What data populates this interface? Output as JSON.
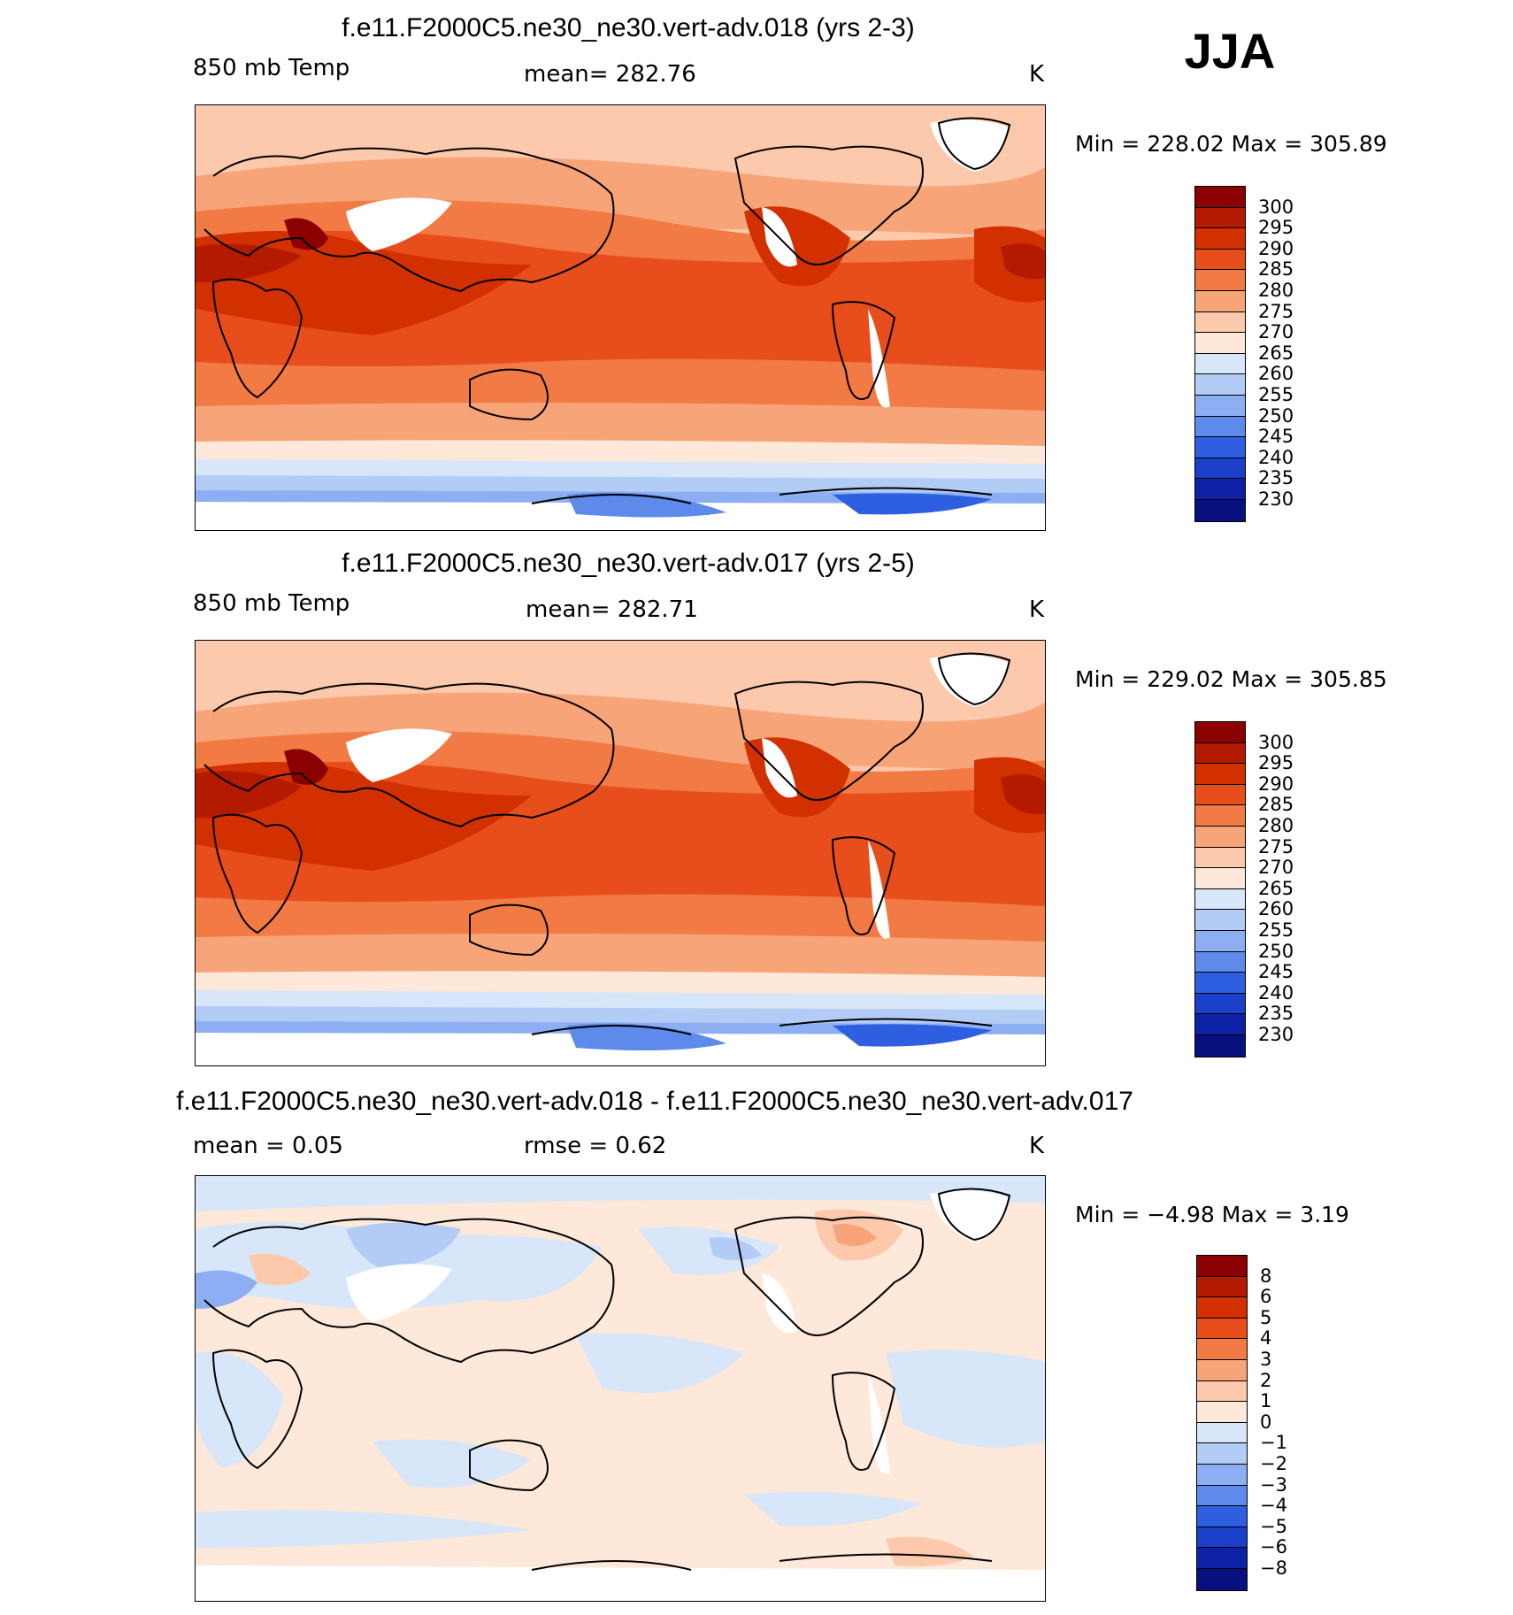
{
  "season": "JJA",
  "panels": [
    {
      "title": "f.e11.F2000C5.ne30_ne30.vert-adv.018 (yrs 2-3)",
      "left_label": "850 mb Temp",
      "center_label": "mean=  282.76",
      "units": "K",
      "minmax": "Min  =  228.02  Max  =  305.89",
      "colorbar": {
        "labels": [
          "300",
          "295",
          "290",
          "285",
          "280",
          "275",
          "270",
          "265",
          "260",
          "255",
          "250",
          "245",
          "240",
          "235",
          "230"
        ],
        "colors": [
          "#8b0000",
          "#b31a00",
          "#d33000",
          "#e84e1b",
          "#f27a45",
          "#f8a479",
          "#fcc9ac",
          "#fde8d9",
          "#d7e6f8",
          "#b3ccf5",
          "#8daef2",
          "#5d8aeb",
          "#2e5fe0",
          "#1a3fc8",
          "#0e22a8",
          "#081080"
        ]
      }
    },
    {
      "title": "f.e11.F2000C5.ne30_ne30.vert-adv.017 (yrs 2-5)",
      "left_label": "850 mb Temp",
      "center_label": "mean=  282.71",
      "units": "K",
      "minmax": "Min  =  229.02  Max  =  305.85",
      "colorbar": {
        "labels": [
          "300",
          "295",
          "290",
          "285",
          "280",
          "275",
          "270",
          "265",
          "260",
          "255",
          "250",
          "245",
          "240",
          "235",
          "230"
        ],
        "colors": [
          "#8b0000",
          "#b31a00",
          "#d33000",
          "#e84e1b",
          "#f27a45",
          "#f8a479",
          "#fcc9ac",
          "#fde8d9",
          "#d7e6f8",
          "#b3ccf5",
          "#8daef2",
          "#5d8aeb",
          "#2e5fe0",
          "#1a3fc8",
          "#0e22a8",
          "#081080"
        ]
      }
    },
    {
      "title": "f.e11.F2000C5.ne30_ne30.vert-adv.018 - f.e11.F2000C5.ne30_ne30.vert-adv.017",
      "left_label": "mean =      0.05",
      "center_label": "rmse =      0.62",
      "units": "K",
      "minmax": "Min  =    −4.98  Max  =      3.19",
      "colorbar": {
        "labels": [
          "8",
          "6",
          "5",
          "4",
          "3",
          "2",
          "1",
          "0",
          "−1",
          "−2",
          "−3",
          "−4",
          "−5",
          "−6",
          "−8"
        ],
        "colors": [
          "#8b0000",
          "#b31a00",
          "#d33000",
          "#e84e1b",
          "#f27a45",
          "#f8a479",
          "#fcc9ac",
          "#fde8d9",
          "#d7e6f8",
          "#b3ccf5",
          "#8daef2",
          "#5d8aeb",
          "#2e5fe0",
          "#1a3fc8",
          "#0e22a8",
          "#081080"
        ]
      }
    }
  ]
}
